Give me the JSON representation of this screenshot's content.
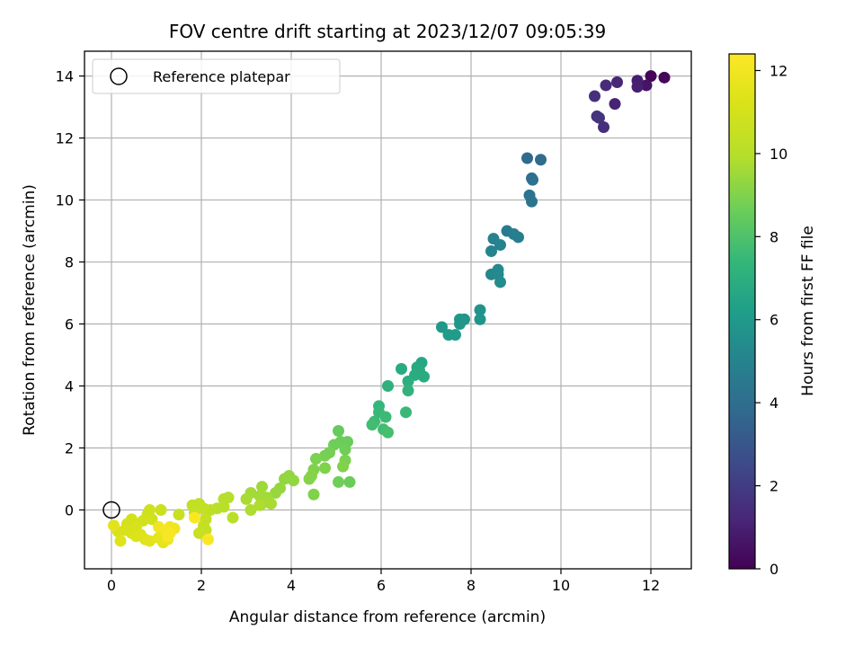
{
  "chart_data": {
    "type": "scatter",
    "title": "FOV centre drift starting at 2023/12/07 09:05:39",
    "xlabel": "Angular distance from reference (arcmin)",
    "ylabel": "Rotation from reference (arcmin)",
    "xlim": [
      -0.6,
      12.9
    ],
    "ylim": [
      -1.9,
      14.8
    ],
    "xticks": [
      "0",
      "2",
      "4",
      "6",
      "8",
      "10",
      "12"
    ],
    "yticks": [
      "0",
      "2",
      "4",
      "6",
      "8",
      "10",
      "12",
      "14"
    ],
    "grid": true,
    "legend": {
      "placement": "top-left",
      "entries": [
        "Reference platepar"
      ]
    },
    "reference_point": {
      "x": 0,
      "y": 0
    },
    "colorbar": {
      "label": "Hours from first FF file",
      "range": [
        0,
        12.4
      ],
      "ticks": [
        "0",
        "2",
        "4",
        "6",
        "8",
        "10",
        "12"
      ],
      "colormap": "viridis"
    },
    "points": [
      {
        "x": 12.0,
        "y": 14.0,
        "c": 0.1
      },
      {
        "x": 12.3,
        "y": 13.95,
        "c": 0.2
      },
      {
        "x": 11.9,
        "y": 13.7,
        "c": 0.6
      },
      {
        "x": 11.7,
        "y": 13.85,
        "c": 0.9
      },
      {
        "x": 11.7,
        "y": 13.65,
        "c": 1.0
      },
      {
        "x": 11.25,
        "y": 13.8,
        "c": 1.2
      },
      {
        "x": 11.2,
        "y": 13.1,
        "c": 1.1
      },
      {
        "x": 11.0,
        "y": 13.7,
        "c": 1.4
      },
      {
        "x": 10.75,
        "y": 13.35,
        "c": 1.5
      },
      {
        "x": 10.8,
        "y": 12.7,
        "c": 1.6
      },
      {
        "x": 10.85,
        "y": 12.65,
        "c": 1.7
      },
      {
        "x": 10.95,
        "y": 12.35,
        "c": 1.5
      },
      {
        "x": 9.25,
        "y": 11.35,
        "c": 3.8
      },
      {
        "x": 9.55,
        "y": 11.3,
        "c": 3.9
      },
      {
        "x": 9.35,
        "y": 10.7,
        "c": 4.0
      },
      {
        "x": 9.37,
        "y": 10.65,
        "c": 4.1
      },
      {
        "x": 9.3,
        "y": 10.15,
        "c": 4.2
      },
      {
        "x": 9.35,
        "y": 9.95,
        "c": 4.3
      },
      {
        "x": 8.8,
        "y": 9.0,
        "c": 4.6
      },
      {
        "x": 8.95,
        "y": 8.9,
        "c": 4.7
      },
      {
        "x": 9.05,
        "y": 8.8,
        "c": 4.8
      },
      {
        "x": 8.5,
        "y": 8.75,
        "c": 4.9
      },
      {
        "x": 8.65,
        "y": 8.55,
        "c": 5.0
      },
      {
        "x": 8.45,
        "y": 8.35,
        "c": 5.0
      },
      {
        "x": 8.45,
        "y": 7.6,
        "c": 5.2
      },
      {
        "x": 8.6,
        "y": 7.75,
        "c": 5.3
      },
      {
        "x": 8.6,
        "y": 7.6,
        "c": 5.3
      },
      {
        "x": 8.65,
        "y": 7.35,
        "c": 5.4
      },
      {
        "x": 8.2,
        "y": 6.45,
        "c": 5.7
      },
      {
        "x": 8.2,
        "y": 6.15,
        "c": 5.8
      },
      {
        "x": 7.85,
        "y": 6.15,
        "c": 5.8
      },
      {
        "x": 7.75,
        "y": 6.15,
        "c": 5.9
      },
      {
        "x": 7.75,
        "y": 6.0,
        "c": 5.9
      },
      {
        "x": 7.35,
        "y": 5.9,
        "c": 6.0
      },
      {
        "x": 7.5,
        "y": 5.65,
        "c": 6.1
      },
      {
        "x": 7.65,
        "y": 5.65,
        "c": 6.1
      },
      {
        "x": 6.9,
        "y": 4.75,
        "c": 6.6
      },
      {
        "x": 6.8,
        "y": 4.6,
        "c": 6.7
      },
      {
        "x": 6.45,
        "y": 4.55,
        "c": 6.8
      },
      {
        "x": 6.85,
        "y": 4.5,
        "c": 6.8
      },
      {
        "x": 6.75,
        "y": 4.35,
        "c": 6.9
      },
      {
        "x": 6.95,
        "y": 4.3,
        "c": 6.9
      },
      {
        "x": 6.6,
        "y": 4.15,
        "c": 7.0
      },
      {
        "x": 6.15,
        "y": 4.0,
        "c": 7.1
      },
      {
        "x": 6.6,
        "y": 3.85,
        "c": 7.2
      },
      {
        "x": 5.95,
        "y": 3.35,
        "c": 7.4
      },
      {
        "x": 5.95,
        "y": 3.15,
        "c": 7.5
      },
      {
        "x": 6.55,
        "y": 3.15,
        "c": 7.5
      },
      {
        "x": 6.1,
        "y": 3.0,
        "c": 7.6
      },
      {
        "x": 5.85,
        "y": 2.85,
        "c": 7.6
      },
      {
        "x": 5.8,
        "y": 2.75,
        "c": 7.7
      },
      {
        "x": 6.05,
        "y": 2.6,
        "c": 7.7
      },
      {
        "x": 6.15,
        "y": 2.5,
        "c": 7.8
      },
      {
        "x": 5.05,
        "y": 2.55,
        "c": 8.5
      },
      {
        "x": 5.25,
        "y": 2.2,
        "c": 8.6
      },
      {
        "x": 5.1,
        "y": 2.2,
        "c": 8.6
      },
      {
        "x": 4.95,
        "y": 2.1,
        "c": 8.7
      },
      {
        "x": 5.2,
        "y": 1.95,
        "c": 8.7
      },
      {
        "x": 4.85,
        "y": 1.85,
        "c": 8.8
      },
      {
        "x": 4.75,
        "y": 1.75,
        "c": 8.8
      },
      {
        "x": 4.55,
        "y": 1.65,
        "c": 8.9
      },
      {
        "x": 5.2,
        "y": 1.6,
        "c": 8.9
      },
      {
        "x": 5.15,
        "y": 1.4,
        "c": 9.0
      },
      {
        "x": 4.75,
        "y": 1.35,
        "c": 9.0
      },
      {
        "x": 4.5,
        "y": 1.3,
        "c": 9.0
      },
      {
        "x": 4.45,
        "y": 1.1,
        "c": 9.1
      },
      {
        "x": 4.4,
        "y": 1.0,
        "c": 9.1
      },
      {
        "x": 5.05,
        "y": 0.9,
        "c": 8.7
      },
      {
        "x": 5.3,
        "y": 0.9,
        "c": 8.6
      },
      {
        "x": 4.5,
        "y": 0.5,
        "c": 9.0
      },
      {
        "x": 3.95,
        "y": 1.1,
        "c": 9.3
      },
      {
        "x": 3.85,
        "y": 1.0,
        "c": 9.3
      },
      {
        "x": 4.05,
        "y": 0.95,
        "c": 9.3
      },
      {
        "x": 3.75,
        "y": 0.7,
        "c": 9.4
      },
      {
        "x": 3.65,
        "y": 0.55,
        "c": 9.4
      },
      {
        "x": 3.35,
        "y": 0.75,
        "c": 9.5
      },
      {
        "x": 3.1,
        "y": 0.55,
        "c": 9.6
      },
      {
        "x": 3.3,
        "y": 0.45,
        "c": 9.6
      },
      {
        "x": 3.45,
        "y": 0.4,
        "c": 9.6
      },
      {
        "x": 3.0,
        "y": 0.35,
        "c": 9.7
      },
      {
        "x": 3.35,
        "y": 0.2,
        "c": 9.7
      },
      {
        "x": 3.55,
        "y": 0.2,
        "c": 9.7
      },
      {
        "x": 3.3,
        "y": 0.15,
        "c": 9.8
      },
      {
        "x": 3.1,
        "y": 0.0,
        "c": 9.8
      },
      {
        "x": 2.6,
        "y": 0.4,
        "c": 10.0
      },
      {
        "x": 2.5,
        "y": 0.35,
        "c": 10.0
      },
      {
        "x": 2.5,
        "y": 0.1,
        "c": 10.1
      },
      {
        "x": 2.35,
        "y": 0.05,
        "c": 10.1
      },
      {
        "x": 2.2,
        "y": 0.0,
        "c": 10.2
      },
      {
        "x": 2.7,
        "y": -0.25,
        "c": 10.1
      },
      {
        "x": 1.8,
        "y": 0.15,
        "c": 10.3
      },
      {
        "x": 1.95,
        "y": 0.2,
        "c": 10.3
      },
      {
        "x": 2.05,
        "y": 0.05,
        "c": 10.4
      },
      {
        "x": 1.85,
        "y": -0.1,
        "c": 10.4
      },
      {
        "x": 2.1,
        "y": -0.3,
        "c": 10.5
      },
      {
        "x": 2.05,
        "y": -0.5,
        "c": 10.5
      },
      {
        "x": 2.1,
        "y": -0.65,
        "c": 10.5
      },
      {
        "x": 1.95,
        "y": -0.75,
        "c": 10.6
      },
      {
        "x": 1.5,
        "y": -0.15,
        "c": 10.6
      },
      {
        "x": 1.1,
        "y": 0.0,
        "c": 10.7
      },
      {
        "x": 0.85,
        "y": 0.0,
        "c": 10.8
      },
      {
        "x": 0.8,
        "y": -0.15,
        "c": 10.8
      },
      {
        "x": 0.9,
        "y": -0.3,
        "c": 10.9
      },
      {
        "x": 0.7,
        "y": -0.35,
        "c": 10.9
      },
      {
        "x": 0.45,
        "y": -0.3,
        "c": 11.0
      },
      {
        "x": 0.35,
        "y": -0.45,
        "c": 11.0
      },
      {
        "x": 0.55,
        "y": -0.55,
        "c": 11.1
      },
      {
        "x": 0.3,
        "y": -0.65,
        "c": 11.1
      },
      {
        "x": 0.15,
        "y": -0.7,
        "c": 11.2
      },
      {
        "x": 0.45,
        "y": -0.75,
        "c": 11.2
      },
      {
        "x": 0.65,
        "y": -0.8,
        "c": 11.3
      },
      {
        "x": 0.55,
        "y": -0.85,
        "c": 11.3
      },
      {
        "x": 0.75,
        "y": -0.95,
        "c": 11.4
      },
      {
        "x": 0.2,
        "y": -1.0,
        "c": 11.4
      },
      {
        "x": 0.85,
        "y": -1.0,
        "c": 11.5
      },
      {
        "x": 1.05,
        "y": -0.9,
        "c": 11.6
      },
      {
        "x": 1.2,
        "y": -0.8,
        "c": 11.7
      },
      {
        "x": 1.15,
        "y": -1.05,
        "c": 11.6
      },
      {
        "x": 1.25,
        "y": -0.95,
        "c": 11.8
      },
      {
        "x": 1.4,
        "y": -0.6,
        "c": 11.9
      },
      {
        "x": 1.3,
        "y": -0.55,
        "c": 12.0
      },
      {
        "x": 1.05,
        "y": -0.55,
        "c": 12.0
      },
      {
        "x": 1.2,
        "y": -0.65,
        "c": 12.1
      },
      {
        "x": 1.3,
        "y": -0.75,
        "c": 12.2
      },
      {
        "x": 1.25,
        "y": -0.85,
        "c": 12.2
      },
      {
        "x": 0.05,
        "y": -0.5,
        "c": 11.5
      },
      {
        "x": 1.85,
        "y": -0.25,
        "c": 12.3
      },
      {
        "x": 2.15,
        "y": -0.95,
        "c": 12.3
      }
    ]
  }
}
